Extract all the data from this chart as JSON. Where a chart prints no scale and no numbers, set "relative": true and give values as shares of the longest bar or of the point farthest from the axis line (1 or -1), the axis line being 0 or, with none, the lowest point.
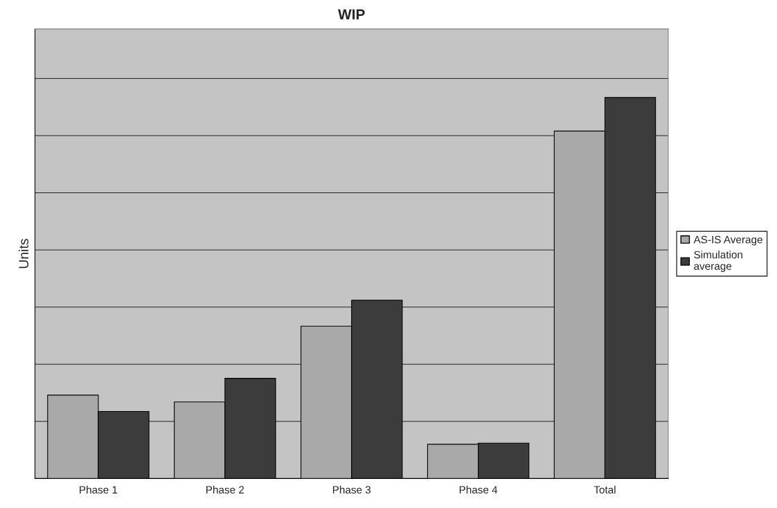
{
  "chart_data": {
    "type": "bar",
    "title": "WIP",
    "ylabel": "Units",
    "relative": true,
    "categories": [
      "Phase 1",
      "Phase 2",
      "Phase 3",
      "Phase 4",
      "Total"
    ],
    "series": [
      {
        "name": "AS-IS Average",
        "color": "#a9a9a9",
        "values": [
          0.219,
          0.201,
          0.4,
          0.09,
          0.912
        ]
      },
      {
        "name": "Simulation average",
        "color": "#3c3c3c",
        "values": [
          0.176,
          0.263,
          0.468,
          0.093,
          1
        ]
      }
    ],
    "grid": "y",
    "legend": "right"
  }
}
